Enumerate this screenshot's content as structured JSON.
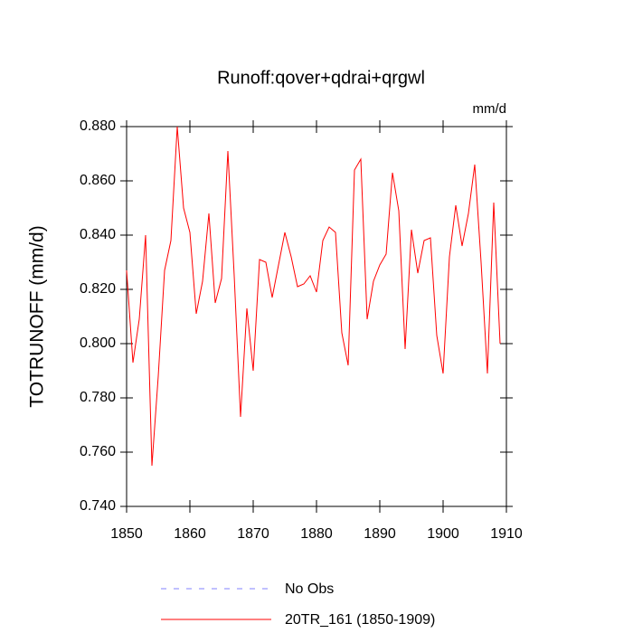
{
  "chart_data": {
    "type": "line",
    "title": "Runoff:qover+qdrai+qrgwl",
    "units": "mm/d",
    "y_label": "TOTRUNOFF  (mm/d)",
    "x": [
      1850,
      1851,
      1852,
      1853,
      1854,
      1855,
      1856,
      1857,
      1858,
      1859,
      1860,
      1861,
      1862,
      1863,
      1864,
      1865,
      1866,
      1867,
      1868,
      1869,
      1870,
      1871,
      1872,
      1873,
      1874,
      1875,
      1876,
      1877,
      1878,
      1879,
      1880,
      1881,
      1882,
      1883,
      1884,
      1885,
      1886,
      1887,
      1888,
      1889,
      1890,
      1891,
      1892,
      1893,
      1894,
      1895,
      1896,
      1897,
      1898,
      1899,
      1900,
      1901,
      1902,
      1903,
      1904,
      1905,
      1906,
      1907,
      1908,
      1909
    ],
    "series": [
      {
        "name": "No Obs",
        "color": "#8080ff",
        "dashed": true,
        "values": [
          null,
          null,
          null,
          null,
          null,
          null,
          null,
          null,
          null,
          null,
          null,
          null,
          null,
          null,
          null,
          null,
          null,
          null,
          null,
          null,
          null,
          null,
          null,
          null,
          null,
          null,
          null,
          null,
          null,
          null,
          null,
          null,
          null,
          null,
          null,
          null,
          null,
          null,
          null,
          null,
          null,
          null,
          null,
          null,
          null,
          null,
          null,
          null,
          null,
          null,
          null,
          null,
          null,
          null,
          null,
          null,
          null,
          null,
          null,
          null
        ]
      },
      {
        "name": "20TR_161 (1850-1909)",
        "color": "#ff0000",
        "dashed": false,
        "values": [
          0.827,
          0.793,
          0.809,
          0.84,
          0.755,
          0.788,
          0.827,
          0.838,
          0.88,
          0.85,
          0.841,
          0.811,
          0.823,
          0.848,
          0.815,
          0.824,
          0.871,
          0.825,
          0.773,
          0.813,
          0.79,
          0.831,
          0.83,
          0.817,
          0.829,
          0.841,
          0.832,
          0.821,
          0.822,
          0.825,
          0.819,
          0.838,
          0.843,
          0.841,
          0.804,
          0.792,
          0.864,
          0.868,
          0.809,
          0.823,
          0.829,
          0.833,
          0.863,
          0.849,
          0.798,
          0.842,
          0.826,
          0.838,
          0.839,
          0.803,
          0.789,
          0.832,
          0.851,
          0.836,
          0.848,
          0.866,
          0.83,
          0.789,
          0.852,
          0.8
        ]
      }
    ],
    "xlim": [
      1850,
      1910
    ],
    "xticks": [
      1850,
      1860,
      1870,
      1880,
      1890,
      1900,
      1910
    ],
    "ylim": [
      0.74,
      0.88
    ],
    "yticks": [
      {
        "value": 0.74,
        "label": "0.740"
      },
      {
        "value": 0.76,
        "label": "0.760"
      },
      {
        "value": 0.78,
        "label": "0.780"
      },
      {
        "value": 0.8,
        "label": "0.800"
      },
      {
        "value": 0.82,
        "label": "0.820"
      },
      {
        "value": 0.84,
        "label": "0.840"
      },
      {
        "value": 0.86,
        "label": "0.860"
      },
      {
        "value": 0.88,
        "label": "0.880"
      }
    ],
    "grid": false
  }
}
